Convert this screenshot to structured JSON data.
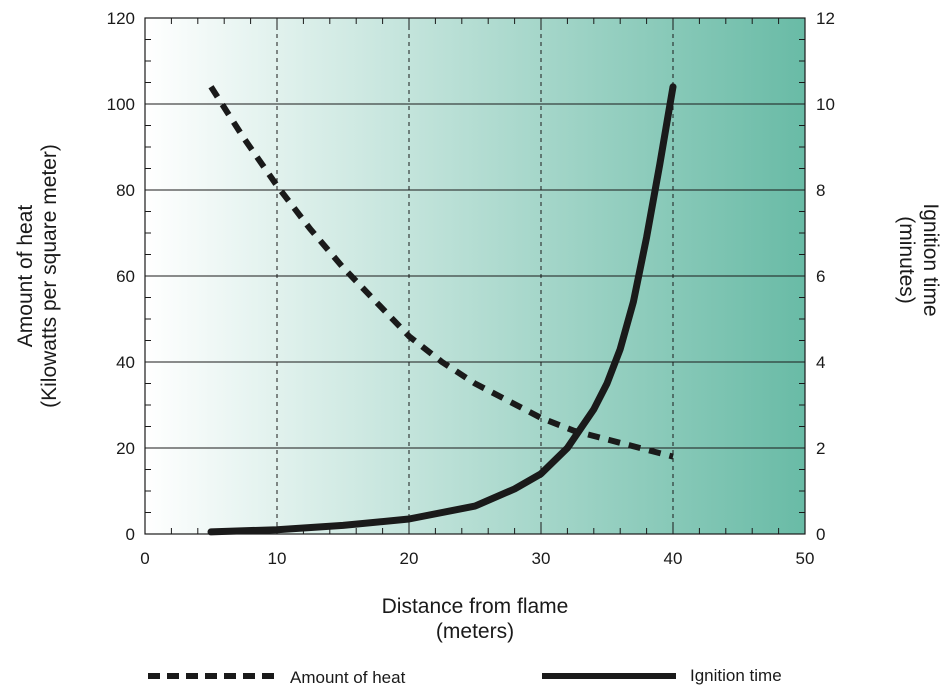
{
  "chart_data": {
    "type": "line",
    "xlabel": [
      "Distance from flame",
      "(meters)"
    ],
    "ylabel_left": [
      "Amount of heat",
      "(Kilowatts per square meter)"
    ],
    "ylabel_right": [
      "Ignition time",
      "(minutes)"
    ],
    "xlim": [
      0,
      50
    ],
    "ylim_left": [
      0,
      120
    ],
    "ylim_right": [
      0,
      12
    ],
    "x_ticks": [
      "0",
      "10",
      "20",
      "30",
      "40",
      "50"
    ],
    "y_left_ticks": [
      "0",
      "20",
      "40",
      "60",
      "80",
      "100",
      "120"
    ],
    "y_right_ticks": [
      "0",
      "2",
      "4",
      "6",
      "8",
      "10",
      "12"
    ],
    "grid": "horizontal lines at left-axis 20–100; dashed vertical lines at x = 10, 20, 30, 40",
    "background": "gradient from white (left) to teal (right)",
    "series": [
      {
        "name": "Amount of heat",
        "axis": "left",
        "style": "dashed",
        "color": "#1a1a1a",
        "points": [
          [
            5,
            104
          ],
          [
            7.5,
            92
          ],
          [
            10,
            81
          ],
          [
            12.5,
            71
          ],
          [
            15,
            62
          ],
          [
            17.5,
            54
          ],
          [
            20,
            46
          ],
          [
            22.5,
            40
          ],
          [
            25,
            35
          ],
          [
            27.5,
            31
          ],
          [
            30,
            27
          ],
          [
            32.5,
            24
          ],
          [
            35,
            22
          ],
          [
            37.5,
            20
          ],
          [
            40,
            18
          ]
        ]
      },
      {
        "name": "Ignition time",
        "axis": "right",
        "style": "solid",
        "color": "#1a1a1a",
        "points": [
          [
            5,
            0.05
          ],
          [
            10,
            0.1
          ],
          [
            15,
            0.2
          ],
          [
            20,
            0.35
          ],
          [
            25,
            0.65
          ],
          [
            28,
            1.05
          ],
          [
            30,
            1.4
          ],
          [
            32,
            2.0
          ],
          [
            34,
            2.9
          ],
          [
            35,
            3.5
          ],
          [
            36,
            4.3
          ],
          [
            37,
            5.4
          ],
          [
            38,
            6.9
          ],
          [
            39,
            8.6
          ],
          [
            40,
            10.4
          ]
        ]
      }
    ],
    "legend": [
      {
        "label": "Amount of heat",
        "style": "dashed"
      },
      {
        "label": "Ignition time",
        "style": "solid"
      }
    ],
    "legend_position": "bottom"
  }
}
